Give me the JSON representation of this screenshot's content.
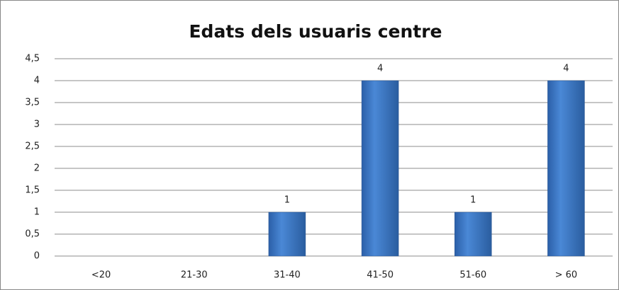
{
  "chart_data": {
    "type": "bar",
    "title": "Edats dels usuaris centre",
    "categories": [
      "<20",
      "21-30",
      "31-40",
      "41-50",
      "51-60",
      "> 60"
    ],
    "values": [
      0,
      0,
      1,
      4,
      1,
      4
    ],
    "color": "#3f78c6",
    "ylim": [
      0,
      4.5
    ],
    "yticks": [
      0,
      {
        "value": 0.5,
        "label": "0,5"
      },
      1,
      {
        "value": 1.5,
        "label": "1,5"
      },
      2,
      {
        "value": 2.5,
        "label": "2,5"
      },
      3,
      {
        "value": 3.5,
        "label": "3,5"
      },
      4,
      {
        "value": 4.5,
        "label": "4,5"
      }
    ],
    "grid": true
  }
}
